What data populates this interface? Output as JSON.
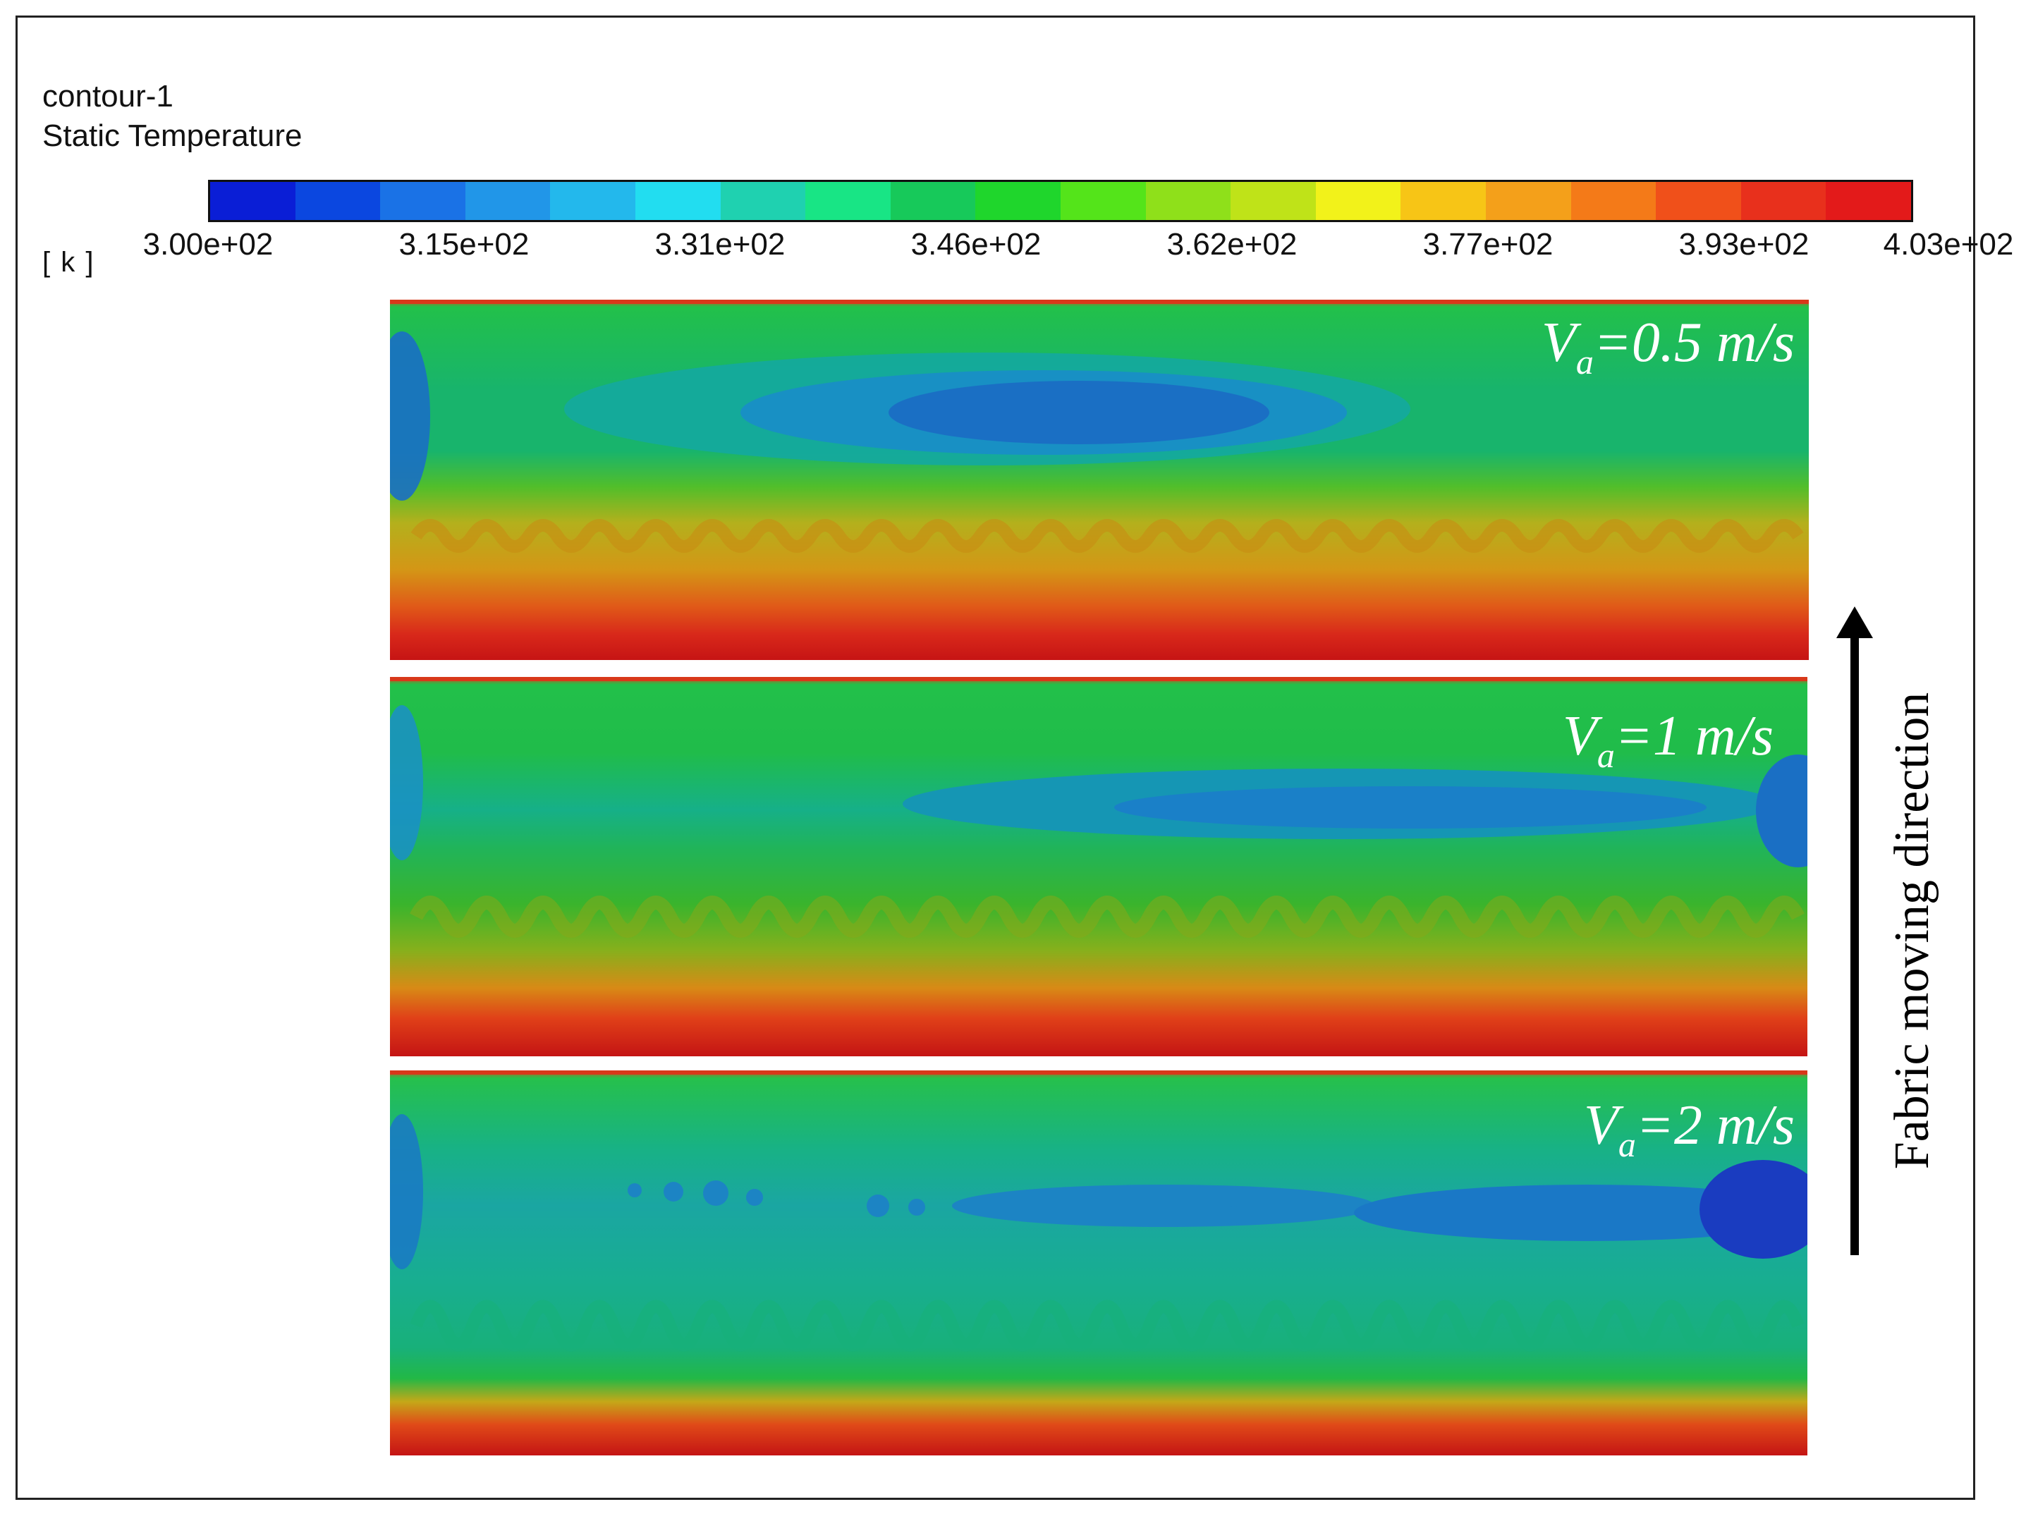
{
  "header": {
    "title": "contour-1",
    "subtitle": "Static Temperature",
    "unit": "[ k ]"
  },
  "chart_data": {
    "type": "heatmap",
    "variable": "Static Temperature",
    "unit": "k",
    "colorbar": {
      "min": 300,
      "max": 403,
      "levels": 20,
      "tick_labels": [
        "3.00e+02",
        "3.15e+02",
        "3.31e+02",
        "3.46e+02",
        "3.62e+02",
        "3.77e+02",
        "3.93e+02",
        "4.03e+02"
      ],
      "colors": [
        "#0a1ed6",
        "#0b47e0",
        "#1a72e6",
        "#2196e8",
        "#23b8ec",
        "#22ddf0",
        "#1fd1b0",
        "#18e585",
        "#17c95a",
        "#1fd62c",
        "#54e41a",
        "#8fe01a",
        "#bfe318",
        "#f2f21a",
        "#f7c516",
        "#f4a01a",
        "#f47a18",
        "#f0501a",
        "#e8301c",
        "#e31a1a"
      ]
    },
    "panels": [
      {
        "label_prefix": "V",
        "label_sub": "a",
        "label_value": "=0.5 m/s",
        "velocity": 0.5
      },
      {
        "label_prefix": "V",
        "label_sub": "a",
        "label_value": "=1 m/s",
        "velocity": 1
      },
      {
        "label_prefix": "V",
        "label_sub": "a",
        "label_value": "=2 m/s",
        "velocity": 2
      }
    ],
    "annotation": "Fabric moving direction",
    "grid": false,
    "legend": "top"
  }
}
